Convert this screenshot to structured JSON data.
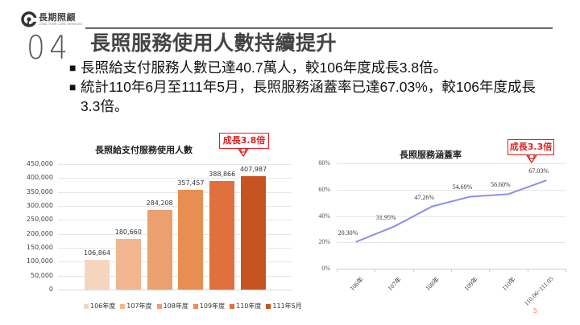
{
  "logo": {
    "name": "長期照顧",
    "subtitle": "LONG TERM CARE SERVICES",
    "icon": "ltc-logo-icon"
  },
  "header": {
    "section_number": "04",
    "title": "長照服務使用人數持續提升"
  },
  "bullets": [
    {
      "marker": "■",
      "text": "長照給支付服務人數已達40.7萬人，較106年度成長3.8倍。"
    },
    {
      "marker": "■",
      "text": "統計110年6月至111年5月，長照服務涵蓋率已達67.03%，較106年度成長3.3倍。"
    }
  ],
  "left_chart": {
    "callout": "成長3.8倍",
    "callout_color": "#e02020"
  },
  "right_chart": {
    "callout": "成長3.3倍",
    "callout_color": "#e02020"
  },
  "page_number": "5",
  "chart_data": [
    {
      "type": "bar",
      "title": "長照給支付服務使用人數",
      "categories": [
        "106年度",
        "107年度",
        "108年度",
        "109年度",
        "110年度",
        "111年5月"
      ],
      "values": [
        106864,
        180660,
        284208,
        357457,
        388866,
        407987
      ],
      "value_labels": [
        "106,864",
        "180,660",
        "284,208",
        "357,457",
        "388,866",
        "407,987"
      ],
      "colors": [
        "#f6d5bf",
        "#f1b690",
        "#eca070",
        "#e88e50",
        "#e0703e",
        "#c65422"
      ],
      "yticks": [
        "0",
        "50,000",
        "100,000",
        "150,000",
        "200,000",
        "250,000",
        "300,000",
        "350,000",
        "400,000",
        "450,000"
      ],
      "ylim": [
        0,
        450000
      ],
      "xlabel": "",
      "ylabel": "",
      "grid": true,
      "legend_position": "bottom",
      "annotation": "成長3.8倍"
    },
    {
      "type": "line",
      "title": "長照服務涵蓋率",
      "categories": [
        "106年",
        "107年",
        "108年",
        "109年",
        "110年",
        "110.06~111.05"
      ],
      "values": [
        20.3,
        31.95,
        47.26,
        54.69,
        56.6,
        67.03
      ],
      "value_labels": [
        "20.30%",
        "31.95%",
        "47.26%",
        "54.69%",
        "56.60%",
        "67.03%"
      ],
      "line_color": "#8c8cf0",
      "yticks": [
        "0%",
        "20%",
        "40%",
        "60%",
        "80%"
      ],
      "ylim": [
        0,
        80
      ],
      "xlabel": "",
      "ylabel": "",
      "grid": true,
      "legend_position": "none",
      "annotation": "成長3.3倍"
    }
  ]
}
